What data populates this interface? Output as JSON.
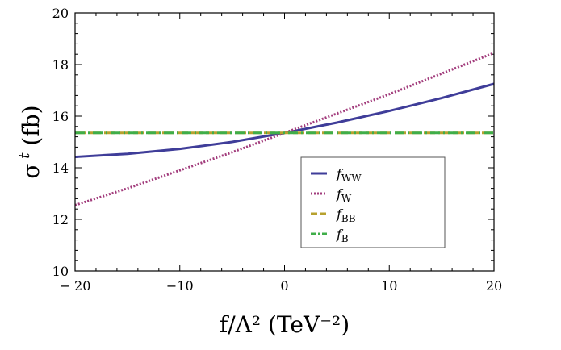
{
  "chart_data": {
    "type": "line",
    "title": "",
    "xlabel": "f/Λ² (TeV⁻²)",
    "ylabel": "σ^t (fb)",
    "xlim": [
      -20,
      20
    ],
    "ylim": [
      10,
      20
    ],
    "x_ticks": [
      -20,
      -10,
      0,
      10,
      20
    ],
    "x_tick_labels": [
      "− 20",
      "−10",
      "0",
      "10",
      "20"
    ],
    "y_ticks": [
      10,
      12,
      14,
      16,
      18,
      20
    ],
    "y_tick_labels": [
      "10",
      "12",
      "14",
      "16",
      "18",
      "20"
    ],
    "grid": false,
    "legend_position": "center-right",
    "x": [
      -20,
      -15,
      -10,
      -5,
      0,
      5,
      10,
      15,
      20
    ],
    "series": [
      {
        "name": "f_WW",
        "legend_main": "f",
        "legend_sub": "WW",
        "color": "#3f3d99",
        "style": "solid",
        "values": [
          14.42,
          14.54,
          14.73,
          15.0,
          15.35,
          15.75,
          16.2,
          16.7,
          17.25
        ]
      },
      {
        "name": "f_W",
        "legend_main": "f",
        "legend_sub": "W",
        "color": "#a23c7c",
        "style": "dotted",
        "values": [
          12.55,
          13.2,
          13.9,
          14.6,
          15.35,
          16.1,
          16.85,
          17.65,
          18.45
        ]
      },
      {
        "name": "f_BB",
        "legend_main": "f",
        "legend_sub": "BB",
        "color": "#b7a12e",
        "style": "dashed",
        "values": [
          15.35,
          15.35,
          15.35,
          15.35,
          15.35,
          15.35,
          15.35,
          15.35,
          15.35
        ]
      },
      {
        "name": "f_B",
        "legend_main": "f",
        "legend_sub": "B",
        "color": "#3fae49",
        "style": "dashdot",
        "values": [
          15.35,
          15.35,
          15.35,
          15.35,
          15.35,
          15.35,
          15.35,
          15.35,
          15.35
        ]
      }
    ]
  }
}
